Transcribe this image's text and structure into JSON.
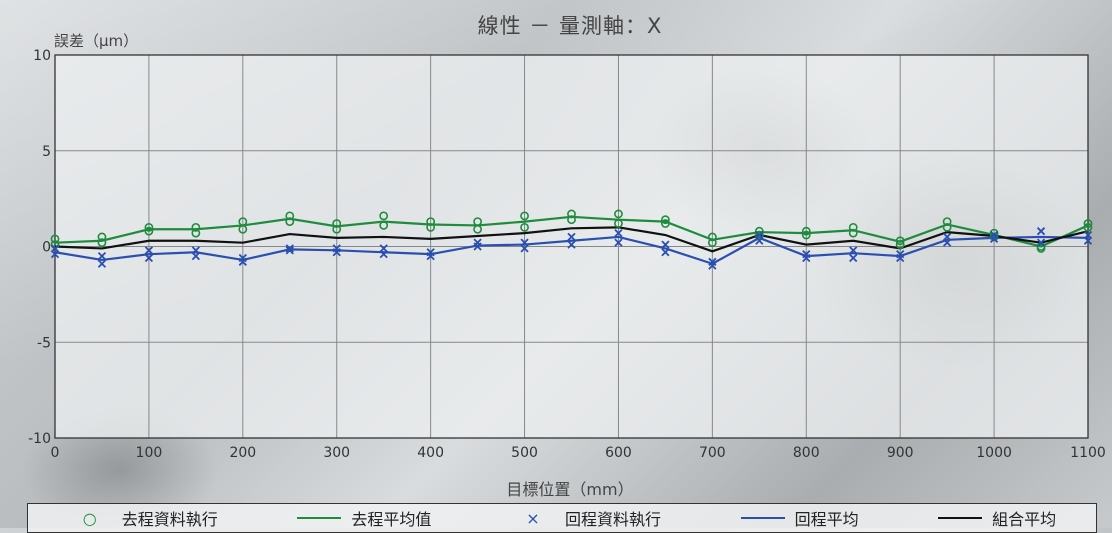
{
  "chart_data": {
    "type": "scatter",
    "title": "線性 － 量測軸：X",
    "xlabel": "目標位置（mm）",
    "ylabel": "誤差（μm）",
    "xlim": [
      0,
      1100
    ],
    "ylim": [
      -10,
      10
    ],
    "x_ticks": [
      "0",
      "100",
      "200",
      "300",
      "400",
      "500",
      "600",
      "700",
      "800",
      "900",
      "1000",
      "1100"
    ],
    "y_ticks": [
      "10",
      "5",
      "0",
      "-5",
      "-10"
    ],
    "grid": true,
    "legend_position": "bottom",
    "x": [
      0,
      50,
      100,
      150,
      200,
      250,
      300,
      350,
      400,
      450,
      500,
      550,
      600,
      650,
      700,
      750,
      800,
      850,
      900,
      950,
      1000,
      1050,
      1100
    ],
    "series": [
      {
        "name": "去程資料執行",
        "marker": "circle",
        "color": "#1e8c3c",
        "runs": [
          [
            0.4,
            0.5,
            1.0,
            1.0,
            1.3,
            1.6,
            1.2,
            1.6,
            1.3,
            1.3,
            1.6,
            1.7,
            1.7,
            1.4,
            0.5,
            0.8,
            0.8,
            1.0,
            0.3,
            1.3,
            0.7,
            0.0,
            1.2
          ],
          [
            0.1,
            0.2,
            0.8,
            0.7,
            0.9,
            1.3,
            0.9,
            1.1,
            1.0,
            0.9,
            1.0,
            1.4,
            1.2,
            1.2,
            0.2,
            0.6,
            0.6,
            0.7,
            0.1,
            1.0,
            0.5,
            -0.1,
            1.0
          ]
        ]
      },
      {
        "name": "去程平均值",
        "style": "line",
        "color": "#1e8c3c",
        "values": [
          0.2,
          0.3,
          0.9,
          0.9,
          1.1,
          1.45,
          1.05,
          1.3,
          1.15,
          1.1,
          1.3,
          1.55,
          1.4,
          1.3,
          0.35,
          0.75,
          0.7,
          0.85,
          0.25,
          1.15,
          0.6,
          0.0,
          1.1
        ]
      },
      {
        "name": "回程資料執行",
        "marker": "x",
        "color": "#2a4fb0",
        "runs": [
          [
            -0.1,
            -0.5,
            -0.2,
            -0.2,
            -0.6,
            -0.1,
            -0.1,
            -0.1,
            -0.3,
            0.2,
            0.2,
            0.5,
            0.7,
            0.1,
            -0.8,
            0.6,
            -0.4,
            -0.2,
            -0.4,
            0.5,
            0.6,
            0.8,
            0.6
          ],
          [
            -0.4,
            -0.9,
            -0.6,
            -0.5,
            -0.8,
            -0.2,
            -0.3,
            -0.4,
            -0.5,
            0.0,
            -0.1,
            0.1,
            0.2,
            -0.3,
            -1.0,
            0.3,
            -0.6,
            -0.6,
            -0.6,
            0.2,
            0.4,
            0.2,
            0.3
          ]
        ]
      },
      {
        "name": "回程平均",
        "style": "line",
        "color": "#2a4fb0",
        "values": [
          -0.3,
          -0.7,
          -0.4,
          -0.3,
          -0.7,
          -0.15,
          -0.2,
          -0.3,
          -0.4,
          0.05,
          0.1,
          0.3,
          0.5,
          -0.1,
          -0.9,
          0.45,
          -0.5,
          -0.35,
          -0.5,
          0.35,
          0.45,
          0.5,
          0.45
        ]
      },
      {
        "name": "組合平均",
        "style": "line",
        "color": "#111111",
        "values": [
          0.0,
          -0.1,
          0.3,
          0.3,
          0.2,
          0.65,
          0.45,
          0.5,
          0.4,
          0.55,
          0.7,
          0.95,
          1.0,
          0.6,
          -0.25,
          0.6,
          0.1,
          0.3,
          -0.1,
          0.75,
          0.55,
          0.2,
          0.8
        ]
      }
    ]
  }
}
